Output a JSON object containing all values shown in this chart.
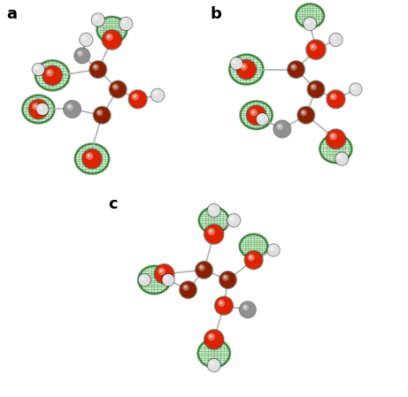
{
  "fig_width": 4.61,
  "fig_height": 4.49,
  "dpi": 100,
  "background_color": "#ffffff",
  "panel_labels": [
    "a",
    "b",
    "c"
  ],
  "panel_label_fontsize": 13,
  "panel_label_weight": "bold",
  "green_dark": "#1a6b1a",
  "green_mid": "#2e8b2e",
  "green_light": "#4db84d",
  "green_pale": "#7dd87d",
  "red_bright": "#dd2200",
  "red_dark": "#8b2000",
  "gray_light": "#c8c8c8",
  "gray_mid": "#909090",
  "gray_dark": "#505050",
  "white_atom": "#e0e0e0",
  "bond_gray": "#b0b0b0"
}
